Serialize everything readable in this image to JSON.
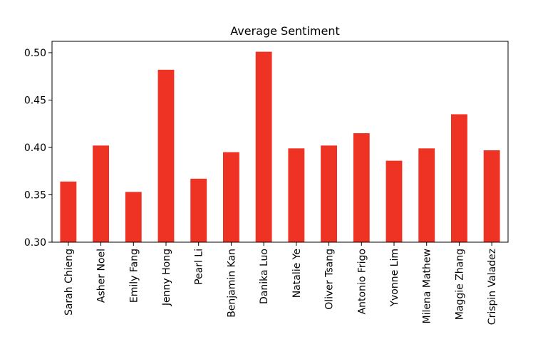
{
  "chart_data": {
    "type": "bar",
    "title": "Average Sentiment",
    "xlabel": "",
    "ylabel": "",
    "categories": [
      "Sarah Chieng",
      "Asher Noel",
      "Emily Fang",
      "Jenny Hong",
      "Pearl Li",
      "Benjamin Kan",
      "Danika Luo",
      "Natalie Ye",
      "Oliver Tsang",
      "Antonio Frigo",
      "Yvonne Lim",
      "Milena Mathew",
      "Maggie Zhang",
      "Crispin Valadez"
    ],
    "values": [
      0.364,
      0.402,
      0.353,
      0.482,
      0.367,
      0.395,
      0.501,
      0.399,
      0.402,
      0.415,
      0.386,
      0.399,
      0.435,
      0.397
    ],
    "ylim": [
      0.3,
      0.512
    ],
    "yticks": [
      0.3,
      0.35,
      0.4,
      0.45,
      0.5
    ],
    "ytick_labels": [
      "0.30",
      "0.35",
      "0.40",
      "0.45",
      "0.50"
    ],
    "grid": false,
    "legend": "none",
    "bar_color": "#ee3224"
  }
}
